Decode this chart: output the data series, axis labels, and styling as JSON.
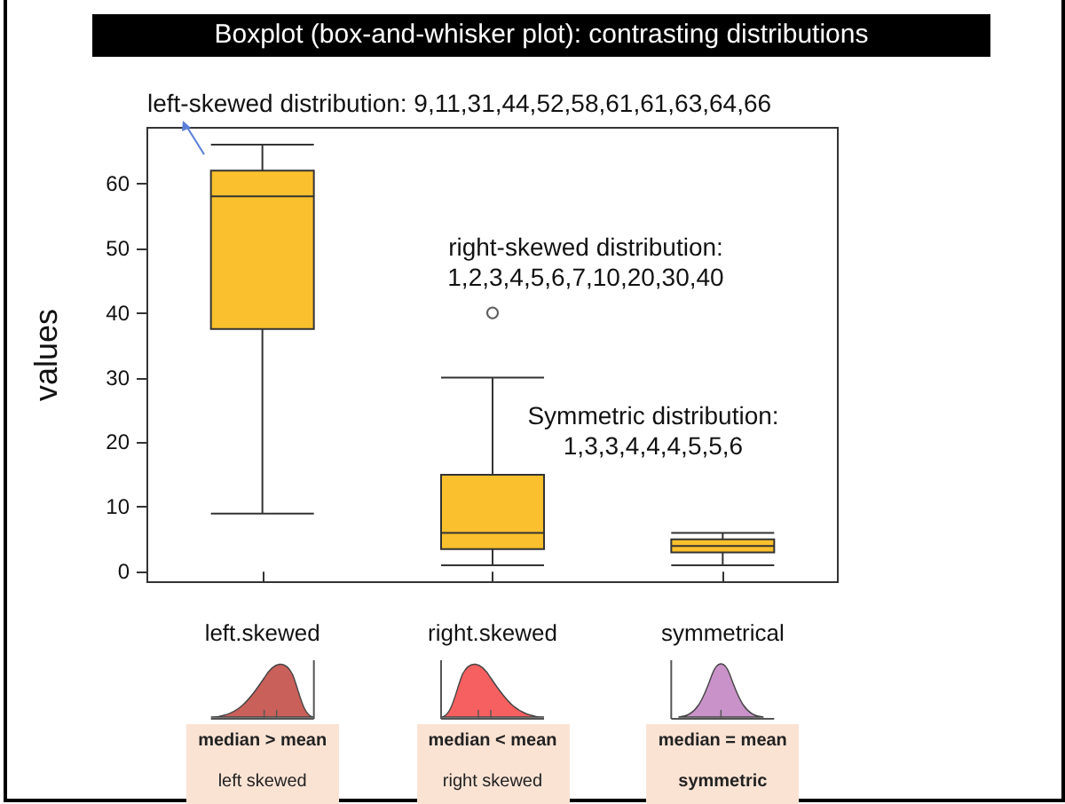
{
  "chart_data": {
    "type": "box",
    "title": "Boxplot (box-and-whisker plot): contrasting distributions",
    "ylabel": "values",
    "categories": [
      "left.skewed",
      "right.skewed",
      "symmetrical"
    ],
    "boxes": [
      {
        "low": 9,
        "q1": 37.5,
        "median": 58,
        "q3": 62,
        "high": 66
      },
      {
        "low": 1,
        "q1": 3.5,
        "median": 6,
        "q3": 15,
        "high": 30,
        "outliers": [
          40
        ]
      },
      {
        "low": 1,
        "q1": 3,
        "median": 4,
        "q3": 5,
        "high": 6
      }
    ],
    "color": "#fbc02d",
    "ylim": [
      -1.6,
      68.6
    ],
    "yticks": [
      0,
      10,
      20,
      30,
      40,
      50,
      60
    ],
    "annotations": [
      "left-skewed distribution: 9,11,31,44,52,58,61,61,63,64,66",
      "right-skewed distribution:\n1,2,3,4,5,6,7,10,20,30,40",
      "Symmetric distribution:\n1,3,3,4,4,4,5,5,6",
      "median > mean",
      "left skewed",
      "median < mean",
      "right skewed",
      "median = mean",
      "symmetric"
    ]
  }
}
